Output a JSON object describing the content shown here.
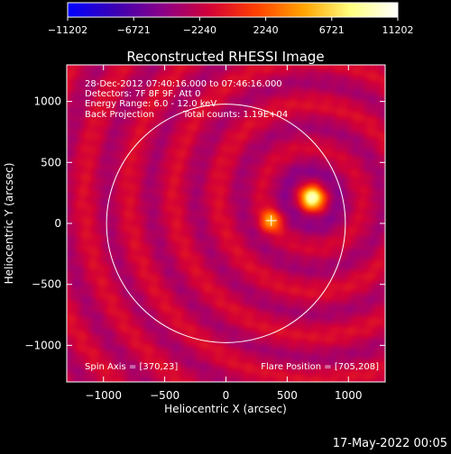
{
  "chart_data": {
    "type": "heatmap",
    "title": "Reconstructed RHESSI Image",
    "xlabel": "Heliocentric X (arcsec)",
    "ylabel": "Heliocentric Y (arcsec)",
    "xlim": [
      -1300,
      1300
    ],
    "ylim": [
      -1300,
      1300
    ],
    "x_ticks": [
      -1000,
      -500,
      0,
      500,
      1000
    ],
    "y_ticks": [
      -1000,
      -500,
      0,
      500,
      1000
    ],
    "x_tick_labels": [
      "−1000",
      "−500",
      "0",
      "500",
      "1000"
    ],
    "y_tick_labels": [
      "−1000",
      "−500",
      "0",
      "500",
      "1000"
    ],
    "colorbar": {
      "range": [
        -11202,
        11202
      ],
      "ticks": [
        -11202,
        -6721,
        -2240,
        2240,
        6721,
        11202
      ],
      "tick_labels": [
        "−11202",
        "−6721",
        "−2240",
        "2240",
        "6721",
        "11202"
      ],
      "colormap": [
        "#0000ff",
        "#3a00b4",
        "#8a0089",
        "#d20038",
        "#ff4000",
        "#ffa300",
        "#ffff80",
        "#ffffff"
      ]
    },
    "info_lines": [
      "28-Dec-2012 07:40:16.000 to 07:46:16.000",
      "Detectors: 7F 8F 9F, Att 0",
      "Energy Range: 6.0 - 12.0 keV",
      "Back Projection",
      "Total counts: 1.19E+04"
    ],
    "spin_axis_label": "Spin Axis = [370,23]",
    "flare_position_label": "Flare Position = [705,208]",
    "solar_limb": {
      "center": [
        0,
        0
      ],
      "radius": 975
    },
    "sources": [
      {
        "x": 705,
        "y": 208,
        "marker": "peak"
      },
      {
        "x": 370,
        "y": 23,
        "marker": "plus"
      }
    ],
    "timestamp": "17-May-2022 00:05"
  }
}
